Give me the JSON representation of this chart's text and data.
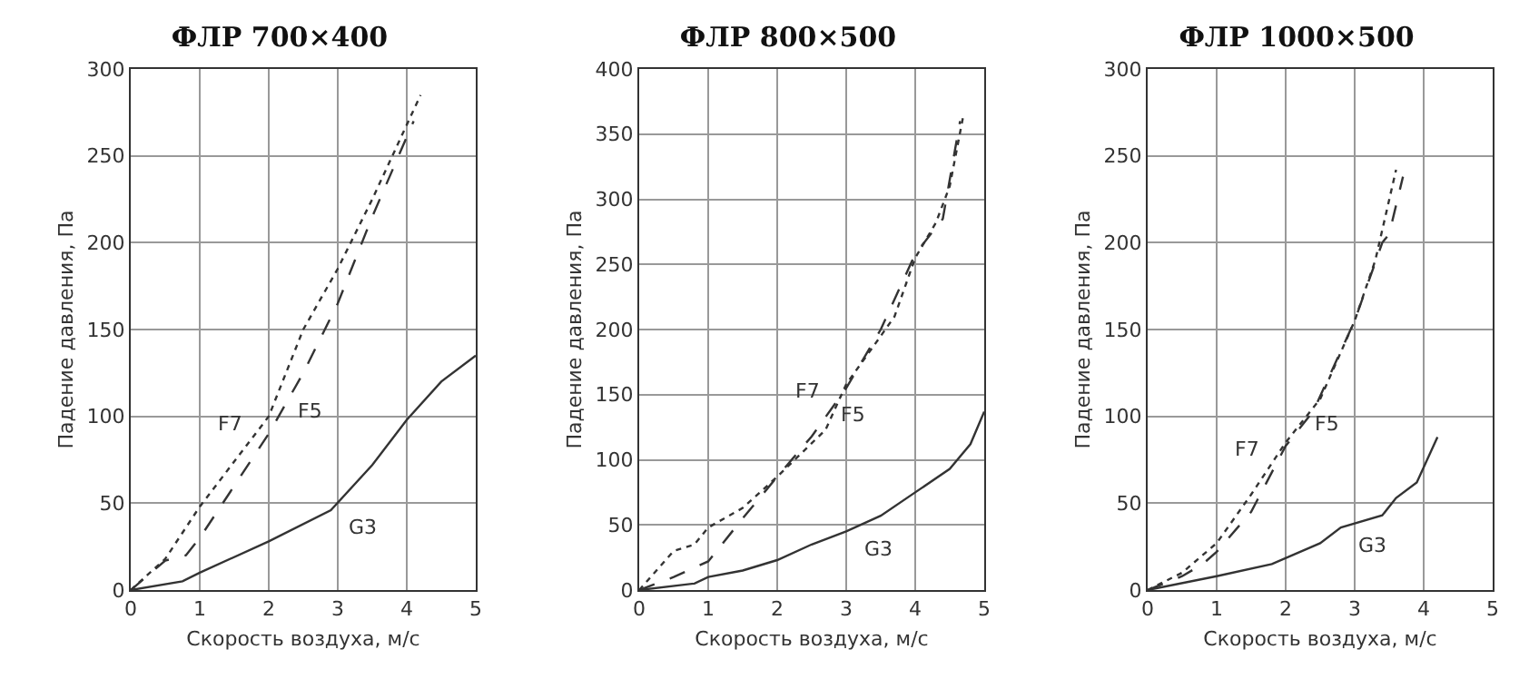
{
  "chart_data": [
    {
      "type": "line",
      "title": "ФЛР 700×400",
      "xlabel": "Скорость воздуха, м/с",
      "ylabel": "Падение давления, Па",
      "xlim": [
        0,
        5
      ],
      "xticks": [
        0,
        1,
        2,
        3,
        4,
        5
      ],
      "ylim": [
        0,
        300
      ],
      "yticks": [
        0,
        50,
        100,
        150,
        200,
        250,
        300
      ],
      "grid": true,
      "legend": false,
      "marker": "none",
      "series": [
        {
          "name": "F7",
          "color": "#333333",
          "line_style": "dotted",
          "x": [
            0,
            0.5,
            1,
            2,
            2.5,
            3,
            3.5,
            4.2
          ],
          "values": [
            0,
            18,
            48,
            100,
            150,
            185,
            225,
            285
          ]
        },
        {
          "name": "F5",
          "color": "#333333",
          "line_style": "dashed",
          "x": [
            0,
            0.5,
            0.8,
            1,
            2,
            2.5,
            3,
            3.5,
            4.1
          ],
          "values": [
            0,
            17,
            20,
            30,
            90,
            125,
            165,
            215,
            270
          ]
        },
        {
          "name": "G3",
          "color": "#333333",
          "line_style": "solid",
          "x": [
            0,
            0.75,
            1,
            2,
            2.9,
            3.5,
            4,
            4.5,
            5
          ],
          "values": [
            0,
            5,
            10,
            28,
            46,
            72,
            98,
            120,
            135
          ]
        }
      ]
    },
    {
      "type": "line",
      "title": "ФЛР 800×500",
      "xlabel": "Скорость воздуха, м/с",
      "ylabel": "Падение давления, Па",
      "xlim": [
        0,
        5
      ],
      "xticks": [
        0,
        1,
        2,
        3,
        4,
        5
      ],
      "ylim": [
        0,
        400
      ],
      "yticks": [
        0,
        50,
        100,
        150,
        200,
        250,
        300,
        350,
        400
      ],
      "grid": true,
      "legend": false,
      "marker": "none",
      "series": [
        {
          "name": "F7",
          "color": "#333333",
          "line_style": "dotted",
          "x": [
            0,
            0.5,
            0.8,
            1,
            1.5,
            2,
            2.7,
            3,
            3.5,
            3.7,
            4,
            4.3,
            4.5,
            4.7
          ],
          "values": [
            0,
            30,
            35,
            48,
            63,
            87,
            123,
            158,
            195,
            210,
            255,
            282,
            310,
            365
          ]
        },
        {
          "name": "F5",
          "color": "#333333",
          "line_style": "dashed",
          "x": [
            0,
            0.5,
            1,
            1.5,
            2,
            2.5,
            3,
            3.5,
            4,
            4.4,
            4.65
          ],
          "values": [
            0,
            10,
            22,
            55,
            87,
            118,
            155,
            200,
            258,
            285,
            360
          ]
        },
        {
          "name": "G3",
          "color": "#333333",
          "line_style": "solid",
          "x": [
            0,
            0.8,
            1,
            1.5,
            2,
            2.5,
            3,
            3.5,
            4,
            4.5,
            4.8,
            5
          ],
          "values": [
            0,
            5,
            10,
            15,
            23,
            35,
            45,
            57,
            75,
            93,
            112,
            137
          ]
        }
      ]
    },
    {
      "type": "line",
      "title": "ФЛР 1000×500",
      "xlabel": "Скорость воздуха, м/с",
      "ylabel": "Падение давления, Па",
      "xlim": [
        0,
        5
      ],
      "xticks": [
        0,
        1,
        2,
        3,
        4,
        5
      ],
      "ylim": [
        0,
        300
      ],
      "yticks": [
        0,
        50,
        100,
        150,
        200,
        250,
        300
      ],
      "grid": true,
      "legend": false,
      "marker": "none",
      "series": [
        {
          "name": "F7",
          "color": "#333333",
          "line_style": "dotted",
          "x": [
            0,
            0.5,
            1,
            1.5,
            2,
            2.5,
            3,
            3.3,
            3.6
          ],
          "values": [
            0,
            10,
            27,
            55,
            85,
            110,
            155,
            190,
            242
          ]
        },
        {
          "name": "F5",
          "color": "#333333",
          "line_style": "dashed",
          "x": [
            0,
            0.5,
            0.8,
            1,
            1.5,
            2,
            2.4,
            3,
            3.4,
            3.5,
            3.7
          ],
          "values": [
            0,
            8,
            15,
            22,
            45,
            83,
            103,
            155,
            200,
            205,
            238
          ]
        },
        {
          "name": "G3",
          "color": "#333333",
          "line_style": "solid",
          "x": [
            0,
            1,
            1.8,
            2.5,
            2.8,
            3.4,
            3.6,
            3.9,
            4.2
          ],
          "values": [
            0,
            8,
            15,
            27,
            36,
            43,
            53,
            62,
            88
          ]
        }
      ]
    }
  ]
}
